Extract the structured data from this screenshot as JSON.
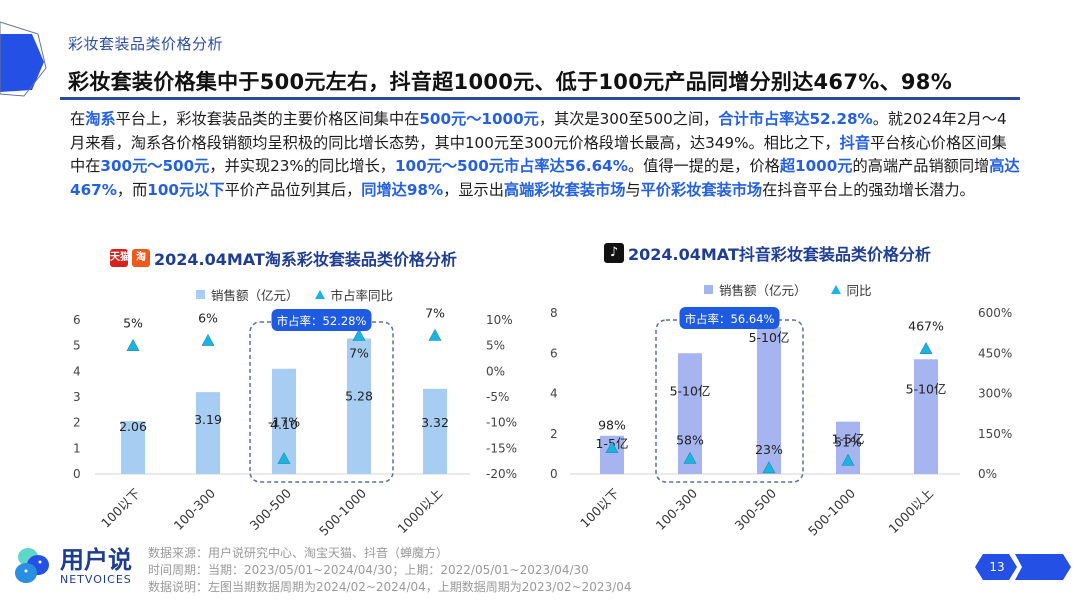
{
  "header": {
    "subtitle": "彩妆套装品类价格分析",
    "headline": "彩妆套装价格集中于500元左右，抖音超1000元、低于100元产品同增分别达467%、98%"
  },
  "paragraph": [
    {
      "t": "在"
    },
    {
      "t": "淘系",
      "hl": true
    },
    {
      "t": "平台上，彩妆套装品类的主要价格区间集中在"
    },
    {
      "t": "500元～1000元",
      "hl": true
    },
    {
      "t": "，其次是300至500之间，"
    },
    {
      "t": "合计市占率达52.28%",
      "hl": true
    },
    {
      "t": "。就2024年2月～4月来看，淘系各价格段销额均呈积极的同比增长态势，其中100元至300元价格段增长最高，达349%。相比之下，"
    },
    {
      "t": "抖音",
      "hl": true
    },
    {
      "t": "平台核心价格区间集中在"
    },
    {
      "t": "300元～500元",
      "hl": true
    },
    {
      "t": "，并实现23%的同比增长，"
    },
    {
      "t": "100元～500元市占率达56.64%",
      "hl": true
    },
    {
      "t": "。值得一提的是，价格"
    },
    {
      "t": "超1000元",
      "hl": true
    },
    {
      "t": "的高端产品销额同增"
    },
    {
      "t": "高达467%",
      "hl": true
    },
    {
      "t": "，而"
    },
    {
      "t": "100元以下",
      "hl": true
    },
    {
      "t": "平价产品位列其后，"
    },
    {
      "t": "同增达98%",
      "hl": true
    },
    {
      "t": "，显示出"
    },
    {
      "t": "高端彩妆套装市场",
      "hl": true
    },
    {
      "t": "与"
    },
    {
      "t": "平价彩妆套装市场",
      "hl": true
    },
    {
      "t": "在抖音平台上的强劲增长潜力。"
    }
  ],
  "colors": {
    "accent": "#2460e0",
    "title_blue": "#1f3e92",
    "bar_taobao": "#a7cdf3",
    "bar_douyin": "#a6b4ef",
    "triangle": "#1cb4de",
    "callout": "#1f5be0",
    "dash_box": "#5a6f9e"
  },
  "chart_data": [
    {
      "type": "bar",
      "title": "2024.04MAT淘系彩妆套装品类价格分析",
      "platform_icons": [
        "天猫",
        "淘"
      ],
      "legend": [
        "销售额（亿元）",
        "市占率同比"
      ],
      "categories": [
        "100以下",
        "100-300",
        "300-500",
        "500-1000",
        "1000以上"
      ],
      "series": [
        {
          "name": "销售额（亿元）",
          "axis": "left",
          "values": [
            2.06,
            3.19,
            4.1,
            5.28,
            3.32
          ],
          "labels": [
            "2.06",
            "3.19",
            "4.10",
            "5.28",
            "3.32"
          ]
        },
        {
          "name": "市占率同比",
          "axis": "right",
          "marker": "triangle",
          "values": [
            5,
            6,
            -17,
            7,
            7
          ],
          "labels": [
            "5%",
            "6%",
            "-17%",
            "7%",
            "7%"
          ]
        }
      ],
      "left_axis": {
        "ticks": [
          "0",
          "1",
          "2",
          "3",
          "4",
          "5",
          "6"
        ],
        "ylim": [
          0,
          6
        ]
      },
      "right_axis": {
        "ticks": [
          "-20%",
          "-15%",
          "-10%",
          "-5%",
          "0%",
          "5%",
          "10%"
        ],
        "ylim": [
          -20,
          10
        ]
      },
      "callout": {
        "label": "市占率：52.28%",
        "covers": [
          "300-500",
          "500-1000"
        ]
      }
    },
    {
      "type": "bar",
      "title": "2024.04MAT抖音彩妆套装品类价格分析",
      "platform_icons": [
        "抖音"
      ],
      "legend": [
        "销售额（亿元）",
        "同比"
      ],
      "categories": [
        "100以下",
        "100-300",
        "300-500",
        "500-1000",
        "1000以上"
      ],
      "series": [
        {
          "name": "销售额（亿元）",
          "axis": "left",
          "values": [
            1.9,
            6.0,
            7.3,
            2.6,
            5.7
          ],
          "labels": [
            "1-5亿",
            "5-10亿",
            "5-10亿",
            "1-5亿",
            "5-10亿"
          ]
        },
        {
          "name": "同比",
          "axis": "right",
          "marker": "triangle",
          "values": [
            98,
            58,
            23,
            51,
            467
          ],
          "labels": [
            "98%",
            "58%",
            "23%",
            "51%",
            "467%"
          ]
        }
      ],
      "left_axis": {
        "ticks": [
          "0",
          "2",
          "4",
          "6",
          "8"
        ],
        "ylim": [
          0,
          8
        ]
      },
      "right_axis": {
        "ticks": [
          "0%",
          "150%",
          "300%",
          "450%",
          "600%"
        ],
        "ylim": [
          0,
          600
        ]
      },
      "callout": {
        "label": "市占率：56.64%",
        "covers": [
          "100-300",
          "300-500"
        ]
      }
    }
  ],
  "footer": {
    "brand_cn": "用户说",
    "brand_en": "NETVOICES",
    "source": "数据来源：用户说研究中心、淘宝天猫、抖音（蝉魔方）",
    "period": "时间周期：当期：2023/05/01~2024/04/30；上期：2022/05/01~2023/04/30",
    "note": "数据说明：左图当期数据周期为2024/02~2024/04，上期数据周期为2023/02~2023/04",
    "page": "13"
  }
}
